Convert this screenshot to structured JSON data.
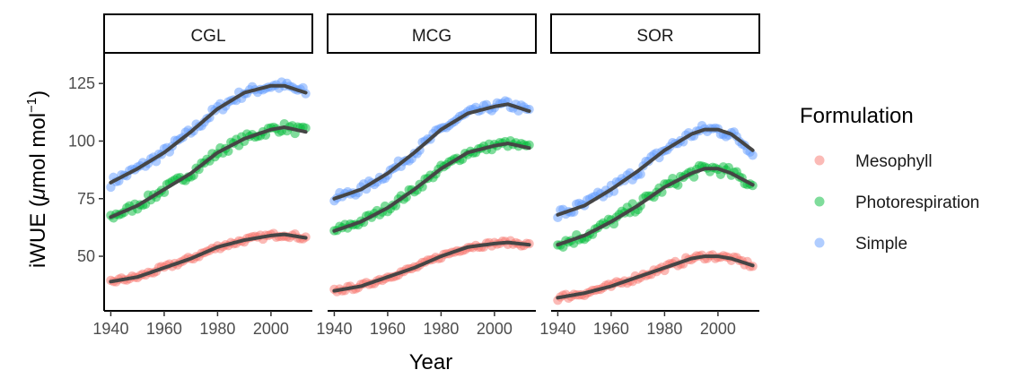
{
  "chart_data": {
    "type": "scatter",
    "layout": "faceted",
    "xlabel": "Year",
    "ylabel_prefix": "iWUE (",
    "ylabel_mu": "μ",
    "ylabel_unit": "mol mol",
    "ylabel_exp": "−1",
    "ylabel_suffix": ")",
    "x_ticks": [
      1940,
      1960,
      1980,
      2000
    ],
    "y_ticks": [
      50,
      75,
      100,
      125
    ],
    "xlim": [
      1937.5,
      2015.5
    ],
    "ylim": [
      26.3,
      137.9
    ],
    "grid": false,
    "legend": {
      "title": "Formulation",
      "position": "right",
      "entries": [
        "Mesophyll",
        "Photorespiration",
        "Simple"
      ]
    },
    "colors": {
      "Mesophyll": "#F8766D",
      "Photorespiration": "#00BA38",
      "Simple": "#619CFF",
      "smooth_line": "#454545"
    },
    "facets": [
      {
        "label": "CGL",
        "series": [
          {
            "name": "Simple",
            "trend": [
              [
                1940,
                82
              ],
              [
                1950,
                88
              ],
              [
                1960,
                95
              ],
              [
                1970,
                104
              ],
              [
                1980,
                114
              ],
              [
                1990,
                121
              ],
              [
                2000,
                124
              ],
              [
                2005,
                124
              ],
              [
                2013,
                121
              ]
            ],
            "jitter": 2.0
          },
          {
            "name": "Photorespiration",
            "trend": [
              [
                1940,
                67
              ],
              [
                1950,
                72
              ],
              [
                1960,
                79
              ],
              [
                1970,
                86
              ],
              [
                1980,
                95
              ],
              [
                1990,
                101
              ],
              [
                2000,
                105
              ],
              [
                2005,
                106
              ],
              [
                2013,
                104
              ]
            ],
            "jitter": 1.8
          },
          {
            "name": "Mesophyll",
            "trend": [
              [
                1940,
                39
              ],
              [
                1950,
                41
              ],
              [
                1960,
                45
              ],
              [
                1970,
                49
              ],
              [
                1980,
                54
              ],
              [
                1990,
                57
              ],
              [
                2000,
                59
              ],
              [
                2005,
                59.5
              ],
              [
                2013,
                58
              ]
            ],
            "jitter": 1.0
          }
        ]
      },
      {
        "label": "MCG",
        "series": [
          {
            "name": "Simple",
            "trend": [
              [
                1940,
                75
              ],
              [
                1950,
                79
              ],
              [
                1960,
                86
              ],
              [
                1970,
                95
              ],
              [
                1980,
                105
              ],
              [
                1990,
                112
              ],
              [
                2000,
                115
              ],
              [
                2005,
                116
              ],
              [
                2013,
                113
              ]
            ],
            "jitter": 1.8
          },
          {
            "name": "Photorespiration",
            "trend": [
              [
                1940,
                61
              ],
              [
                1950,
                65
              ],
              [
                1960,
                71
              ],
              [
                1970,
                79
              ],
              [
                1980,
                88
              ],
              [
                1990,
                95
              ],
              [
                2000,
                98
              ],
              [
                2005,
                99
              ],
              [
                2013,
                97
              ]
            ],
            "jitter": 1.6
          },
          {
            "name": "Mesophyll",
            "trend": [
              [
                1940,
                35
              ],
              [
                1950,
                37
              ],
              [
                1960,
                41
              ],
              [
                1970,
                45
              ],
              [
                1980,
                50
              ],
              [
                1990,
                54
              ],
              [
                2000,
                55.5
              ],
              [
                2005,
                56
              ],
              [
                2013,
                55
              ]
            ],
            "jitter": 0.9
          }
        ]
      },
      {
        "label": "SOR",
        "series": [
          {
            "name": "Simple",
            "trend": [
              [
                1940,
                68
              ],
              [
                1950,
                72
              ],
              [
                1960,
                79
              ],
              [
                1970,
                87
              ],
              [
                1980,
                96
              ],
              [
                1990,
                103
              ],
              [
                1995,
                105
              ],
              [
                2000,
                105
              ],
              [
                2005,
                103
              ],
              [
                2013,
                96
              ]
            ],
            "jitter": 2.4
          },
          {
            "name": "Photorespiration",
            "trend": [
              [
                1940,
                55
              ],
              [
                1950,
                59
              ],
              [
                1960,
                65
              ],
              [
                1970,
                72
              ],
              [
                1980,
                80
              ],
              [
                1990,
                86
              ],
              [
                1995,
                88
              ],
              [
                2000,
                88
              ],
              [
                2005,
                86
              ],
              [
                2013,
                81
              ]
            ],
            "jitter": 2.2
          },
          {
            "name": "Mesophyll",
            "trend": [
              [
                1940,
                32
              ],
              [
                1950,
                34
              ],
              [
                1960,
                37
              ],
              [
                1970,
                41
              ],
              [
                1980,
                45
              ],
              [
                1990,
                49
              ],
              [
                1995,
                50
              ],
              [
                2000,
                50
              ],
              [
                2005,
                49
              ],
              [
                2013,
                46
              ]
            ],
            "jitter": 1.2
          }
        ]
      }
    ]
  }
}
